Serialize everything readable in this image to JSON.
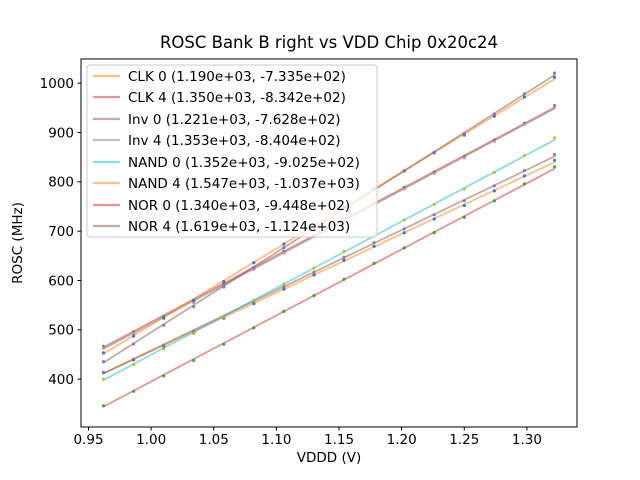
{
  "chart_data": {
    "type": "scatter",
    "title": "ROSC Bank B right vs VDD Chip 0x20c24",
    "xlabel": "VDDD (V)",
    "ylabel": "ROSC (MHz)",
    "xlim": [
      0.944,
      1.34
    ],
    "ylim": [
      303,
      1049
    ],
    "xticks": {
      "values": [
        0.95,
        1.0,
        1.05,
        1.1,
        1.15,
        1.2,
        1.25,
        1.3
      ],
      "labels": [
        "0.95",
        "1.00",
        "1.05",
        "1.10",
        "1.15",
        "1.20",
        "1.25",
        "1.30"
      ]
    },
    "yticks": {
      "values": [
        400,
        500,
        600,
        700,
        800,
        900,
        1000
      ],
      "labels": [
        "400",
        "500",
        "600",
        "700",
        "800",
        "900",
        "1000"
      ]
    },
    "grid": false,
    "legend_position": "upper left",
    "x_start": 0.962,
    "x_end": 1.322,
    "n_points": 16,
    "residuals_mhz": [
      2,
      -1,
      -2,
      -3,
      -2,
      -1,
      0,
      0,
      1,
      1,
      0,
      -1,
      -2,
      -1,
      1,
      4
    ],
    "series": [
      {
        "name": "CLK 0",
        "label": "CLK 0 (1.190e+03, -7.335e+02)",
        "slope": 1190.0,
        "intercept": -733.5,
        "line_color": "#ff7f0e",
        "legend_color": "#ffbf86",
        "marker_color": "#1f77b4"
      },
      {
        "name": "CLK 4",
        "label": "CLK 4 (1.350e+03, -8.342e+02)",
        "slope": 1350.0,
        "intercept": -834.2,
        "line_color": "#d62728",
        "legend_color": "#ea9393",
        "marker_color": "#2ca02c"
      },
      {
        "name": "Inv 0",
        "label": "Inv 0 (1.221e+03, -7.628e+02)",
        "slope": 1221.0,
        "intercept": -762.8,
        "line_color": "#8c564b",
        "legend_color": "#c5aba5",
        "marker_color": "#9467bd"
      },
      {
        "name": "Inv 4",
        "label": "Inv 4 (1.353e+03, -8.404e+02)",
        "slope": 1353.0,
        "intercept": -840.4,
        "line_color": "#7f7f7f",
        "legend_color": "#bfbfbf",
        "marker_color": "#e377c2"
      },
      {
        "name": "NAND 0",
        "label": "NAND 0 (1.352e+03, -9.025e+02)",
        "slope": 1352.0,
        "intercept": -902.5,
        "line_color": "#17becf",
        "legend_color": "#8bdee7",
        "marker_color": "#bcbd22"
      },
      {
        "name": "NAND 4",
        "label": "NAND 4 (1.547e+03, -1.037e+03)",
        "slope": 1547.0,
        "intercept": -1037.0,
        "line_color": "#ff7f0e",
        "legend_color": "#ffbf86",
        "marker_color": "#1f77b4"
      },
      {
        "name": "NOR 0",
        "label": "NOR 0 (1.340e+03, -9.448e+02)",
        "slope": 1340.0,
        "intercept": -944.8,
        "line_color": "#d62728",
        "legend_color": "#ea9393",
        "marker_color": "#2ca02c"
      },
      {
        "name": "NOR 4",
        "label": "NOR 4 (1.619e+03, -1.124e+03)",
        "slope": 1619.0,
        "intercept": -1124.0,
        "line_color": "#8c564b",
        "legend_color": "#c5aba5",
        "marker_color": "#9467bd"
      }
    ]
  }
}
